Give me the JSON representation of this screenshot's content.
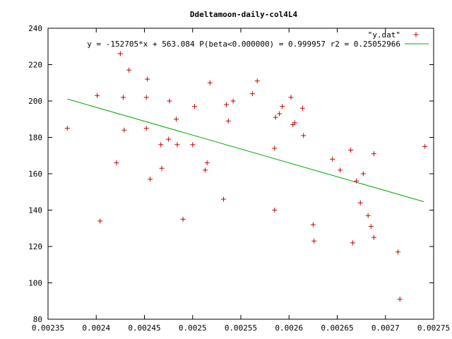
{
  "chart_data": {
    "type": "scatter",
    "title": "Ddeltamoon-daily-col4L4",
    "xlabel": "",
    "ylabel": "",
    "xlim": [
      0.00235,
      0.00275
    ],
    "ylim": [
      80,
      240
    ],
    "x_ticks": [
      0.00235,
      0.0024,
      0.00245,
      0.0025,
      0.00255,
      0.0026,
      0.00265,
      0.0027,
      0.00275
    ],
    "x_tick_labels": [
      "0.00235",
      "0.0024",
      "0.00245",
      "0.0025",
      "0.00255",
      "0.0026",
      "0.00265",
      "0.0027",
      "0.00275"
    ],
    "y_ticks": [
      80,
      100,
      120,
      140,
      160,
      180,
      200,
      220,
      240
    ],
    "y_tick_labels": [
      "80",
      "100",
      "120",
      "140",
      "160",
      "180",
      "200",
      "220",
      "240"
    ],
    "grid": false,
    "legend_position": "top-right",
    "series": [
      {
        "name": "\"y.dat\"",
        "marker": "+",
        "color": "#cc0000",
        "points": [
          [
            0.00237,
            185
          ],
          [
            0.002401,
            203
          ],
          [
            0.002404,
            134
          ],
          [
            0.002421,
            166
          ],
          [
            0.002425,
            226
          ],
          [
            0.002428,
            202
          ],
          [
            0.002429,
            184
          ],
          [
            0.002434,
            217
          ],
          [
            0.002452,
            202
          ],
          [
            0.002452,
            185
          ],
          [
            0.002453,
            212
          ],
          [
            0.002456,
            157
          ],
          [
            0.002467,
            176
          ],
          [
            0.002468,
            163
          ],
          [
            0.002475,
            179
          ],
          [
            0.002476,
            200
          ],
          [
            0.002483,
            190
          ],
          [
            0.002484,
            176
          ],
          [
            0.00249,
            135
          ],
          [
            0.0025,
            176
          ],
          [
            0.002502,
            197
          ],
          [
            0.002513,
            162
          ],
          [
            0.002515,
            166
          ],
          [
            0.002518,
            210
          ],
          [
            0.002532,
            146
          ],
          [
            0.002535,
            198
          ],
          [
            0.002537,
            189
          ],
          [
            0.002542,
            200
          ],
          [
            0.002562,
            204
          ],
          [
            0.002567,
            211
          ],
          [
            0.002585,
            174
          ],
          [
            0.002585,
            140
          ],
          [
            0.002586,
            191
          ],
          [
            0.00259,
            193
          ],
          [
            0.002593,
            197
          ],
          [
            0.002602,
            202
          ],
          [
            0.002604,
            187
          ],
          [
            0.002606,
            188
          ],
          [
            0.002614,
            196
          ],
          [
            0.002615,
            181
          ],
          [
            0.002625,
            132
          ],
          [
            0.002626,
            123
          ],
          [
            0.002645,
            168
          ],
          [
            0.002653,
            162
          ],
          [
            0.002664,
            173
          ],
          [
            0.002666,
            122
          ],
          [
            0.00267,
            156
          ],
          [
            0.002674,
            144
          ],
          [
            0.002677,
            160
          ],
          [
            0.002682,
            137
          ],
          [
            0.002685,
            131
          ],
          [
            0.002688,
            125
          ],
          [
            0.002688,
            171
          ],
          [
            0.002713,
            117
          ],
          [
            0.002715,
            91
          ],
          [
            0.002741,
            175
          ]
        ]
      },
      {
        "name": "y = -152705*x + 563.084 P(beta<0.000000) = 0.999957 r2 = 0.25052966",
        "type": "line",
        "color": "#00aa00",
        "points": [
          [
            0.00237,
            201.1
          ],
          [
            0.00274,
            144.6
          ]
        ]
      }
    ]
  }
}
